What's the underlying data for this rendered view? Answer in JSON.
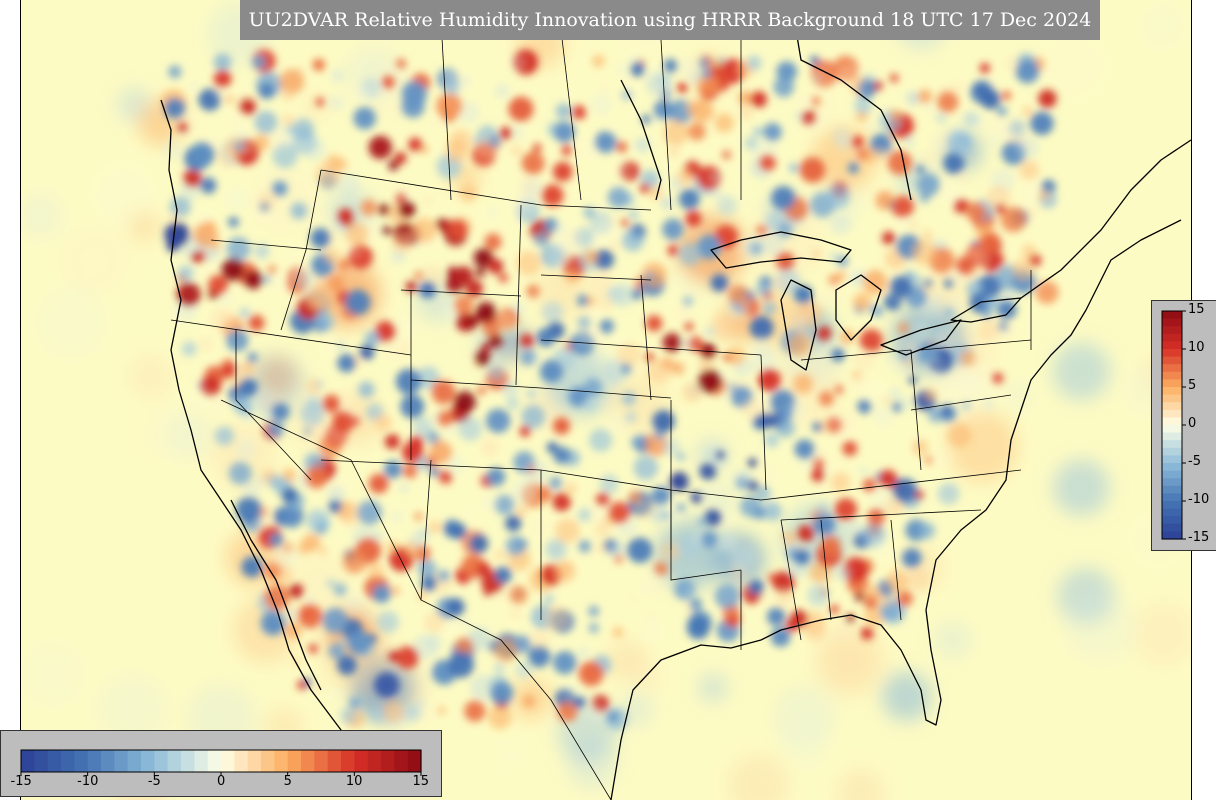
{
  "title": "UU2DVAR Relative Humidity Innovation using HRRR Background 18 UTC 17 Dec 2024",
  "colors": {
    "background": "#fdfbc4",
    "strong_positive": "#b2182b",
    "positive": "#ef8a62",
    "neutral": "#f7f7f7",
    "negative": "#67a9cf",
    "strong_negative": "#2c4f9e",
    "title_banner": "#8a8a8a"
  },
  "colorbar": {
    "min": -15,
    "max": 15,
    "colormap": "red-yellow-blue diverging (reversed)",
    "right_ticks": [
      "15",
      "10",
      "5",
      "0",
      "-5",
      "-10",
      "-15"
    ],
    "bottom_ticks": [
      "-15",
      "-10",
      "-5",
      "0",
      "5",
      "10",
      "15"
    ]
  }
}
